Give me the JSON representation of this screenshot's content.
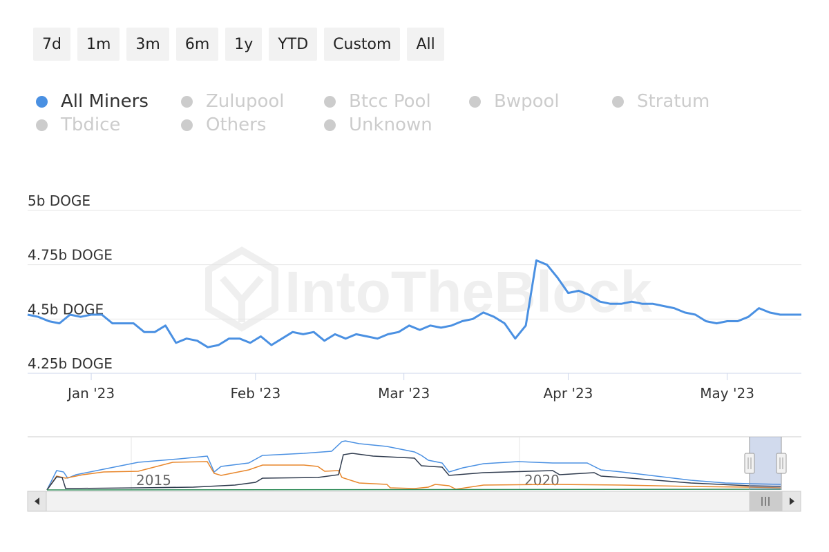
{
  "range_buttons": [
    "7d",
    "1m",
    "3m",
    "6m",
    "1y",
    "YTD",
    "Custom",
    "All"
  ],
  "legend": [
    {
      "label": "All Miners",
      "active": true
    },
    {
      "label": "Zulupool",
      "active": false
    },
    {
      "label": "Btcc Pool",
      "active": false
    },
    {
      "label": "Bwpool",
      "active": false
    },
    {
      "label": "Stratum",
      "active": false
    },
    {
      "label": "Tbdice",
      "active": false
    },
    {
      "label": "Others",
      "active": false
    },
    {
      "label": "Unknown",
      "active": false
    }
  ],
  "watermark": "IntoTheBlock",
  "colors": {
    "accent": "#4a90e2",
    "orange": "#e8862a",
    "dark": "#2e3a4d",
    "green": "#2e8b57",
    "inactive": "#cccccc"
  },
  "navigator": {
    "labels": [
      "2015",
      "2020"
    ]
  },
  "chart_data": {
    "type": "line",
    "series": [
      {
        "name": "All Miners",
        "color": "#4a90e2"
      }
    ],
    "x": [
      "2022-12-20",
      "2022-12-22",
      "2022-12-24",
      "2022-12-26",
      "2022-12-28",
      "2022-12-30",
      "2023-01-01",
      "2023-01-03",
      "2023-01-05",
      "2023-01-07",
      "2023-01-09",
      "2023-01-11",
      "2023-01-13",
      "2023-01-15",
      "2023-01-17",
      "2023-01-19",
      "2023-01-21",
      "2023-01-23",
      "2023-01-25",
      "2023-01-27",
      "2023-01-29",
      "2023-01-31",
      "2023-02-02",
      "2023-02-04",
      "2023-02-06",
      "2023-02-08",
      "2023-02-10",
      "2023-02-12",
      "2023-02-14",
      "2023-02-16",
      "2023-02-18",
      "2023-02-20",
      "2023-02-22",
      "2023-02-24",
      "2023-02-26",
      "2023-02-28",
      "2023-03-02",
      "2023-03-04",
      "2023-03-06",
      "2023-03-08",
      "2023-03-10",
      "2023-03-12",
      "2023-03-14",
      "2023-03-16",
      "2023-03-18",
      "2023-03-20",
      "2023-03-22",
      "2023-03-24",
      "2023-03-26",
      "2023-03-28",
      "2023-03-30",
      "2023-04-01",
      "2023-04-03",
      "2023-04-05",
      "2023-04-07",
      "2023-04-09",
      "2023-04-11",
      "2023-04-13",
      "2023-04-15",
      "2023-04-17",
      "2023-04-19",
      "2023-04-21",
      "2023-04-23",
      "2023-04-25",
      "2023-04-27",
      "2023-04-29",
      "2023-05-01",
      "2023-05-03",
      "2023-05-05",
      "2023-05-07",
      "2023-05-09",
      "2023-05-11",
      "2023-05-13",
      "2023-05-15"
    ],
    "values": [
      4.52,
      4.51,
      4.49,
      4.48,
      4.52,
      4.51,
      4.52,
      4.52,
      4.48,
      4.48,
      4.48,
      4.44,
      4.44,
      4.47,
      4.39,
      4.41,
      4.4,
      4.37,
      4.38,
      4.41,
      4.41,
      4.39,
      4.42,
      4.38,
      4.41,
      4.44,
      4.43,
      4.44,
      4.4,
      4.43,
      4.41,
      4.43,
      4.42,
      4.41,
      4.43,
      4.44,
      4.47,
      4.45,
      4.47,
      4.46,
      4.47,
      4.49,
      4.5,
      4.53,
      4.51,
      4.48,
      4.41,
      4.47,
      4.77,
      4.75,
      4.69,
      4.62,
      4.63,
      4.61,
      4.58,
      4.57,
      4.57,
      4.58,
      4.57,
      4.57,
      4.56,
      4.55,
      4.53,
      4.52,
      4.49,
      4.48,
      4.49,
      4.49,
      4.51,
      4.55,
      4.53,
      4.52,
      4.52,
      4.52
    ],
    "y_ticks": [
      "4.25b DOGE",
      "4.5b DOGE",
      "4.75b DOGE",
      "5b DOGE"
    ],
    "x_ticks": [
      "Jan '23",
      "Feb '23",
      "Mar '23",
      "Apr '23",
      "May '23"
    ],
    "ylim": [
      4.25,
      5.0
    ],
    "grid": true
  }
}
